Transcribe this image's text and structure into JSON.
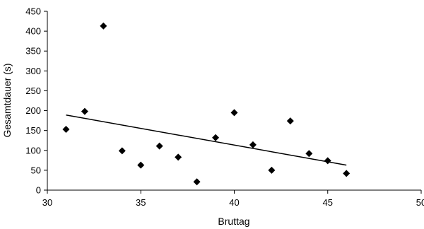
{
  "chart_data": {
    "type": "scatter",
    "xlabel": "Bruttag",
    "ylabel": "Gesamtdauer (s)",
    "xlim": [
      30,
      50
    ],
    "ylim": [
      0,
      450
    ],
    "xticks": [
      30,
      35,
      40,
      45,
      50
    ],
    "yticks": [
      0,
      50,
      100,
      150,
      200,
      250,
      300,
      350,
      400,
      450
    ],
    "grid": false,
    "legend": "none",
    "marker": "diamond",
    "marker_color": "#000000",
    "points": [
      {
        "x": 31,
        "y": 153
      },
      {
        "x": 32,
        "y": 198
      },
      {
        "x": 33,
        "y": 413
      },
      {
        "x": 34,
        "y": 99
      },
      {
        "x": 35,
        "y": 63
      },
      {
        "x": 36,
        "y": 111
      },
      {
        "x": 37,
        "y": 83
      },
      {
        "x": 38,
        "y": 21
      },
      {
        "x": 39,
        "y": 132
      },
      {
        "x": 40,
        "y": 195
      },
      {
        "x": 41,
        "y": 114
      },
      {
        "x": 42,
        "y": 50
      },
      {
        "x": 43,
        "y": 174
      },
      {
        "x": 44,
        "y": 92
      },
      {
        "x": 45,
        "y": 74
      },
      {
        "x": 46,
        "y": 42
      }
    ],
    "trendline": {
      "type": "linear",
      "x": [
        31,
        46
      ],
      "y": [
        189,
        63
      ]
    }
  }
}
